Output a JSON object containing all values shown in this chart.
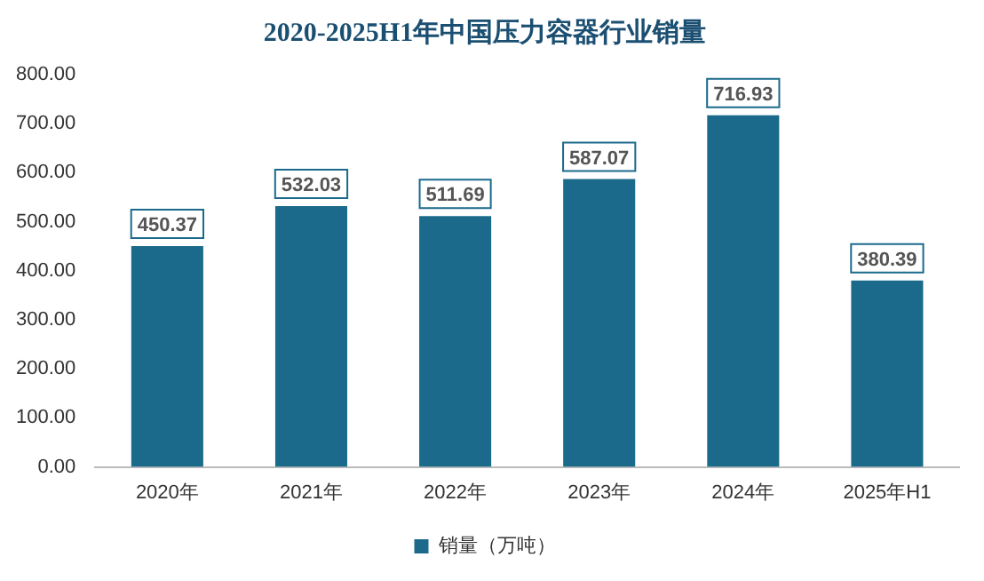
{
  "chart_data": {
    "type": "bar",
    "title": "2020-2025H1年中国压力容器行业销量",
    "categories": [
      "2020年",
      "2021年",
      "2022年",
      "2023年",
      "2024年",
      "2025年H1"
    ],
    "series": [
      {
        "name": "销量（万吨）",
        "color": "#1b6a8c",
        "values": [
          450.37,
          532.03,
          511.69,
          587.07,
          716.93,
          380.39
        ]
      }
    ],
    "ylim": [
      0,
      800
    ],
    "yticks": [
      {
        "value": 0,
        "label": "0.00"
      },
      {
        "value": 100,
        "label": "100.00"
      },
      {
        "value": 200,
        "label": "200.00"
      },
      {
        "value": 300,
        "label": "300.00"
      },
      {
        "value": 400,
        "label": "400.00"
      },
      {
        "value": 500,
        "label": "500.00"
      },
      {
        "value": 600,
        "label": "600.00"
      },
      {
        "value": 700,
        "label": "700.00"
      },
      {
        "value": 800,
        "label": "800.00"
      }
    ],
    "data_labels": true,
    "legend": "bottom",
    "grid": false
  }
}
